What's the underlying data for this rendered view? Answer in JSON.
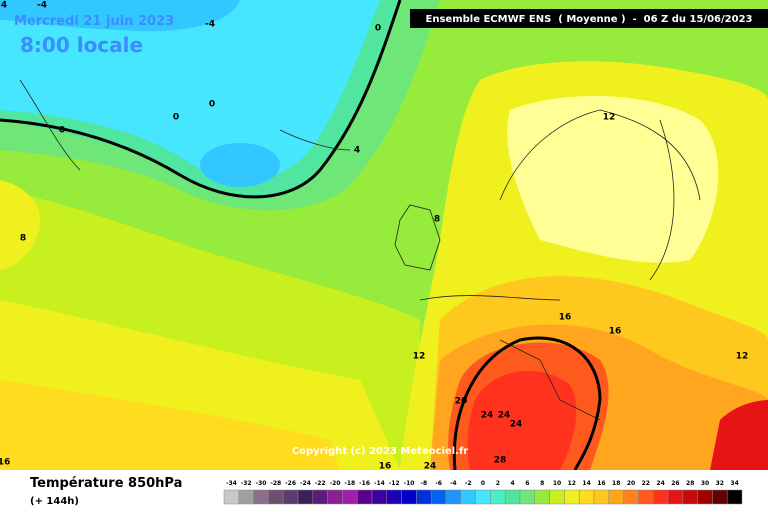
{
  "header": {
    "date": "Mercredi 21 juin 2023",
    "time": "8:00 locale",
    "model": "Ensemble ECMWF ENS  ( Moyenne )  -  06 Z du 15/06/2023",
    "copyright": "Copyright (c) 2023 Meteociel.fr"
  },
  "footer": {
    "parameter": "Température 850hPa",
    "lead": "(+ 144h)"
  },
  "contour_labels": [
    4,
    -4,
    -4,
    0,
    0,
    0,
    0,
    4,
    8,
    8,
    12,
    12,
    12,
    16,
    16,
    16,
    16,
    20,
    24,
    24,
    24,
    24,
    28
  ],
  "scale": {
    "values": [
      -34,
      -32,
      -30,
      -28,
      -26,
      -24,
      -22,
      -20,
      -18,
      -16,
      -14,
      -12,
      -10,
      -8,
      -6,
      -4,
      -2,
      0,
      2,
      4,
      6,
      8,
      10,
      12,
      14,
      16,
      18,
      20,
      22,
      24,
      26,
      28,
      30,
      32,
      34
    ],
    "colors": [
      "#c8c8c8",
      "#a0a0a0",
      "#8c6e8c",
      "#6e506e",
      "#5a3c6e",
      "#3c1e5a",
      "#5a1e78",
      "#8c1e96",
      "#a01eaa",
      "#5a008c",
      "#3c00a0",
      "#1e00b4",
      "#0000c8",
      "#0032dc",
      "#0064f0",
      "#1e96ff",
      "#32c8ff",
      "#46e6ff",
      "#46f0c8",
      "#50e6a0",
      "#6ee678",
      "#96eb3c",
      "#c8f01e",
      "#f0f01e",
      "#ffdc1e",
      "#ffc81e",
      "#ffa51e",
      "#ff821e",
      "#ff5a1e",
      "#ff321e",
      "#e61414",
      "#c80a0a",
      "#a00000",
      "#640000",
      "#000000"
    ]
  }
}
